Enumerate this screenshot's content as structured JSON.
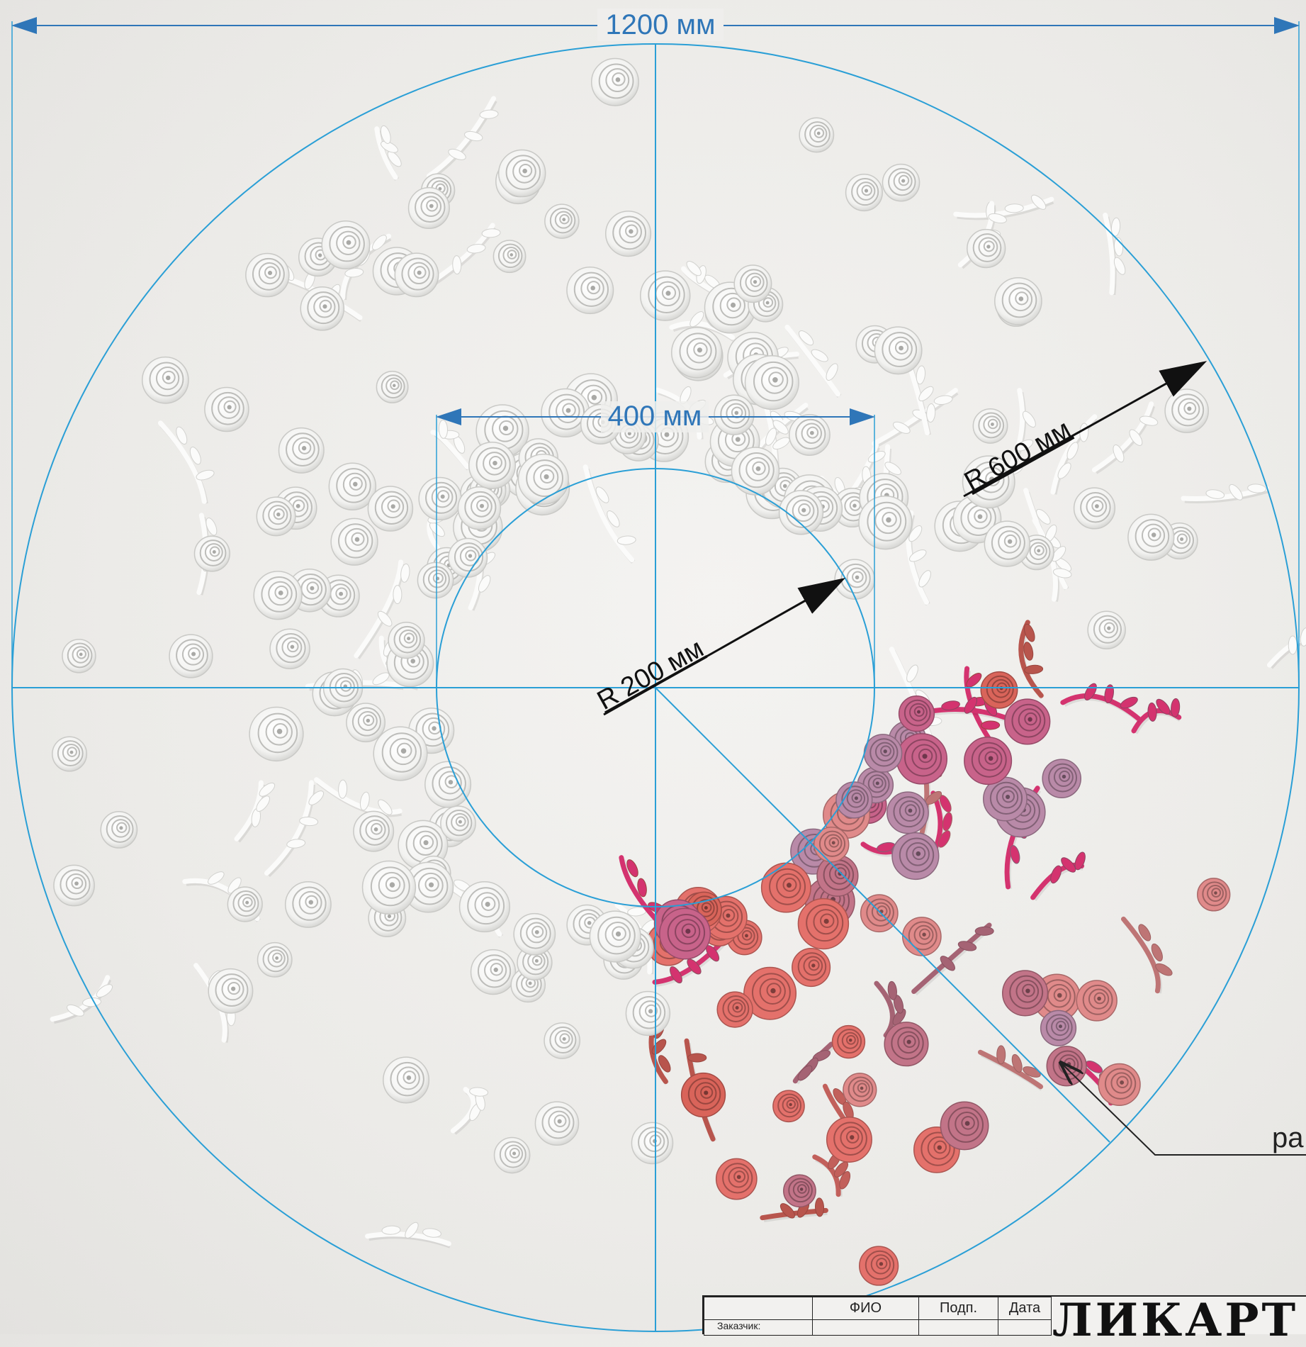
{
  "dimensions": {
    "outer_diameter": "1200 мм",
    "inner_width": "400 мм",
    "outer_radius": "R 600 мм",
    "inner_radius": "R 200 мм"
  },
  "callout": {
    "text": "ра"
  },
  "title_block": {
    "headers": [
      "ФИО",
      "Подп.",
      "Дата"
    ],
    "row_label": "Заказчик:",
    "logo": "ЛИКАРТ"
  },
  "colors": {
    "dimension_line": "#2a9fd6",
    "dimension_text": "#2f76b8",
    "rose_white": "#f7f7f5",
    "rose_coral": "#d9645a",
    "rose_pink": "#c8638a",
    "rose_mauve": "#b98aa8",
    "vine_magenta": "#d4336f"
  }
}
